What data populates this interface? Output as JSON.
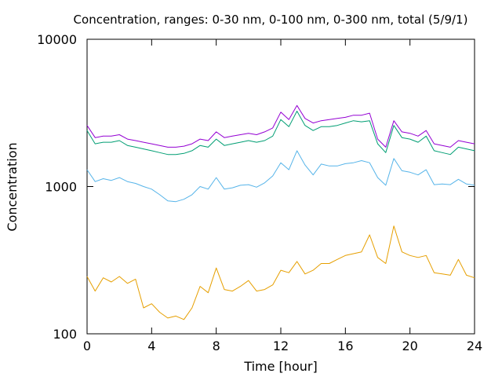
{
  "chart_data": {
    "type": "line",
    "title": "Concentration, ranges: 0-30 nm, 0-100 nm, 0-300 nm, total (5/9/1)",
    "xlabel": "Time [hour]",
    "ylabel": "Concentration",
    "xlim": [
      0,
      24
    ],
    "ylim": [
      100,
      10000
    ],
    "yscale": "log",
    "grid": false,
    "x_ticks": [
      0,
      4,
      8,
      12,
      16,
      20,
      24
    ],
    "y_ticks": [
      100,
      1000,
      10000
    ],
    "x_tick_labels": [
      "0",
      "4",
      "8",
      "12",
      "16",
      "20",
      "24"
    ],
    "y_tick_labels": [
      "100",
      "1000",
      "10000"
    ],
    "x": [
      0,
      0.5,
      1,
      1.5,
      2,
      2.5,
      3,
      3.5,
      4,
      4.5,
      5,
      5.5,
      6,
      6.5,
      7,
      7.5,
      8,
      8.5,
      9,
      9.5,
      10,
      10.5,
      11,
      11.5,
      12,
      12.5,
      13,
      13.5,
      14,
      14.5,
      15,
      15.5,
      16,
      16.5,
      17,
      17.5,
      18,
      18.5,
      19,
      19.5,
      20,
      20.5,
      21,
      21.5,
      22,
      22.5,
      23,
      23.5,
      24
    ],
    "series": [
      {
        "color": "#e69f00",
        "values": [
          245,
          195,
          240,
          225,
          245,
          220,
          235,
          150,
          160,
          140,
          128,
          132,
          125,
          150,
          210,
          190,
          280,
          200,
          195,
          210,
          230,
          195,
          200,
          215,
          270,
          260,
          310,
          255,
          270,
          300,
          300,
          320,
          340,
          350,
          360,
          470,
          330,
          300,
          540,
          360,
          340,
          330,
          340,
          260,
          255,
          250,
          320,
          250,
          240
        ]
      },
      {
        "color": "#56b4e9",
        "values": [
          1300,
          1080,
          1130,
          1100,
          1150,
          1080,
          1050,
          1000,
          960,
          880,
          800,
          790,
          820,
          880,
          1000,
          960,
          1150,
          960,
          980,
          1020,
          1030,
          990,
          1060,
          1180,
          1450,
          1300,
          1750,
          1400,
          1200,
          1420,
          1380,
          1380,
          1430,
          1450,
          1500,
          1450,
          1150,
          1020,
          1550,
          1280,
          1250,
          1200,
          1300,
          1030,
          1040,
          1030,
          1120,
          1040,
          1020
        ]
      },
      {
        "color": "#009e73",
        "values": [
          2400,
          1950,
          2000,
          2000,
          2050,
          1900,
          1850,
          1800,
          1750,
          1700,
          1650,
          1650,
          1680,
          1750,
          1900,
          1850,
          2100,
          1900,
          1950,
          2000,
          2050,
          2000,
          2050,
          2200,
          2850,
          2550,
          3250,
          2600,
          2400,
          2550,
          2550,
          2600,
          2700,
          2800,
          2750,
          2800,
          1950,
          1700,
          2600,
          2150,
          2100,
          2000,
          2200,
          1750,
          1700,
          1650,
          1850,
          1800,
          1750
        ]
      },
      {
        "color": "#9400d3",
        "values": [
          2600,
          2150,
          2200,
          2200,
          2250,
          2100,
          2050,
          2000,
          1950,
          1900,
          1850,
          1850,
          1880,
          1950,
          2100,
          2050,
          2350,
          2150,
          2200,
          2250,
          2300,
          2250,
          2350,
          2500,
          3200,
          2850,
          3550,
          2900,
          2700,
          2800,
          2850,
          2900,
          2950,
          3050,
          3050,
          3150,
          2100,
          1850,
          2800,
          2350,
          2300,
          2200,
          2400,
          1950,
          1900,
          1850,
          2050,
          2000,
          1950
        ]
      }
    ]
  }
}
